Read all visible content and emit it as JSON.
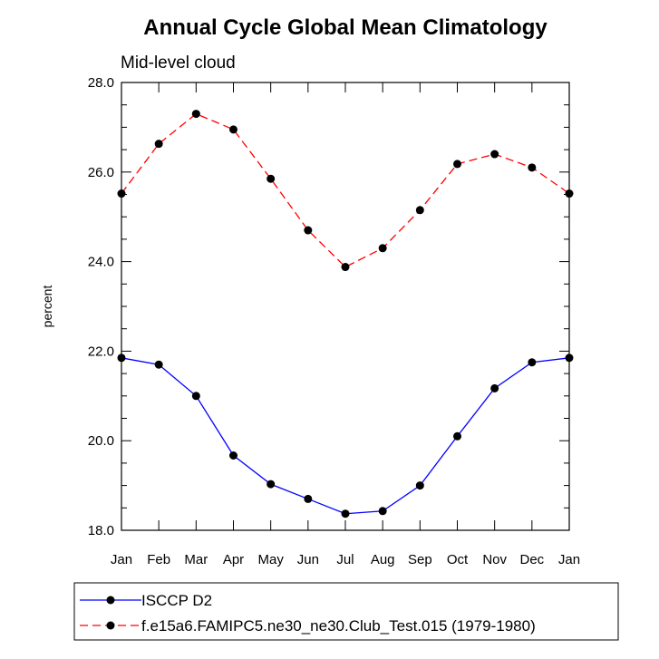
{
  "chart_data": {
    "type": "line",
    "title": "Annual Cycle Global Mean Climatology",
    "subtitle": "Mid-level cloud",
    "xlabel": "",
    "ylabel": "percent",
    "categories": [
      "Jan",
      "Feb",
      "Mar",
      "Apr",
      "May",
      "Jun",
      "Jul",
      "Aug",
      "Sep",
      "Oct",
      "Nov",
      "Dec",
      "Jan"
    ],
    "ylim": [
      18.0,
      28.0
    ],
    "y_ticks": [
      "18.0",
      "20.0",
      "22.0",
      "24.0",
      "26.0",
      "28.0"
    ],
    "grid": false,
    "legend_position": "bottom",
    "series": [
      {
        "name": "ISCCP D2",
        "values": [
          21.85,
          21.7,
          21.0,
          19.67,
          19.03,
          18.7,
          18.37,
          18.43,
          19.0,
          20.1,
          21.17,
          21.75,
          21.85
        ],
        "color": "#0000ff",
        "dash": "solid"
      },
      {
        "name": "f.e15a6.FAMIPC5.ne30_ne30.Club_Test.015 (1979-1980)",
        "values": [
          25.52,
          26.63,
          27.3,
          26.95,
          25.85,
          24.7,
          23.88,
          24.3,
          25.15,
          26.18,
          26.4,
          26.1,
          25.52
        ],
        "color": "#ff0000",
        "dash": "dashed"
      }
    ]
  }
}
